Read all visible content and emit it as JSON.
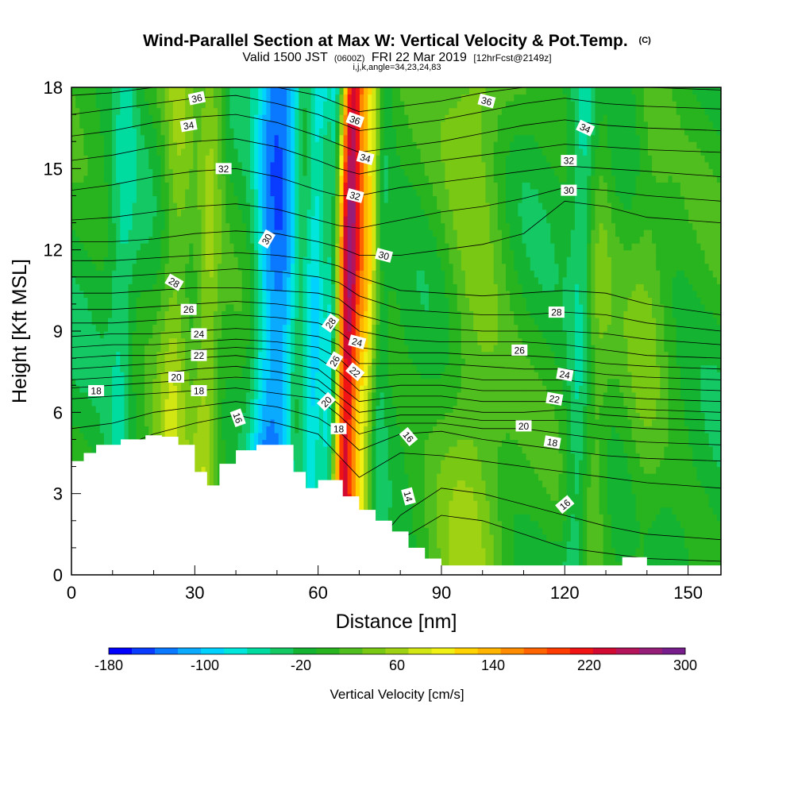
{
  "chart_data": {
    "type": "heatmap",
    "title": "Wind-Parallel Section at Max W: Vertical Velocity & Pot.Temp.",
    "title_tag": "(C)",
    "subtitle_prefix": "Valid 1500 JST",
    "subtitle_utc": "(0600Z)",
    "subtitle_date": "FRI 22 Mar 2019",
    "subtitle_fcst": "[12hrFcst@2149z]",
    "subtitle2": "i,j,k,angle=34,23,24,83",
    "xlabel": "Distance [nm]",
    "ylabel": "Height [Kft MSL]",
    "xlim": [
      0,
      158
    ],
    "ylim": [
      0,
      18
    ],
    "xticks": [
      0,
      30,
      60,
      90,
      120,
      150
    ],
    "yticks": [
      0,
      3,
      6,
      9,
      12,
      15,
      18
    ],
    "colorbar": {
      "title": "Vertical Velocity [cm/s]",
      "min": -180,
      "max": 300,
      "step": 20,
      "tick_labels": [
        "-180",
        "-100",
        "-20",
        "60",
        "140",
        "220",
        "300"
      ],
      "tick_values": [
        -180,
        -100,
        -20,
        60,
        140,
        220,
        300
      ],
      "colors": [
        "#0000ff",
        "#0a3cff",
        "#0a78ff",
        "#0aaaff",
        "#00d2ff",
        "#00e6dc",
        "#00dca0",
        "#14c864",
        "#14b432",
        "#28b41e",
        "#50be1e",
        "#78c814",
        "#a0d214",
        "#d2e614",
        "#f0f014",
        "#ffd200",
        "#ffb400",
        "#ff8c00",
        "#ff6400",
        "#ff3c00",
        "#f01414",
        "#d20a32",
        "#b4145a",
        "#961e78",
        "#781e8c"
      ]
    },
    "terrain": {
      "x": [
        0,
        3,
        6,
        12,
        18,
        22,
        26,
        30,
        33,
        36,
        40,
        45,
        50,
        54,
        57,
        60,
        62,
        66,
        70,
        74,
        78,
        82,
        86,
        90,
        130,
        134,
        136,
        140,
        158
      ],
      "y": [
        4.2,
        4.5,
        4.8,
        5.0,
        5.15,
        5.1,
        4.8,
        3.8,
        3.3,
        4.1,
        4.6,
        4.8,
        4.8,
        3.8,
        3.2,
        3.5,
        3.5,
        2.9,
        2.4,
        2.0,
        1.6,
        1.0,
        0.6,
        0.35,
        0.35,
        0.65,
        0.65,
        0.35,
        0.35
      ]
    },
    "velocity_features": [
      {
        "x": 48,
        "w": 4,
        "value": -110
      },
      {
        "x": 52,
        "w": 3,
        "value": -70
      },
      {
        "x": 59,
        "w": 2.5,
        "value": -80
      },
      {
        "x": 63,
        "w": 1.5,
        "value": -60
      },
      {
        "x": 67,
        "w": 2.5,
        "value": 230
      },
      {
        "x": 71,
        "w": 3.5,
        "value": 120
      },
      {
        "x": 75,
        "w": 2,
        "value": -40
      },
      {
        "x": 33,
        "w": 3,
        "value": 60
      },
      {
        "x": 98,
        "w": 8,
        "value": 50
      },
      {
        "x": 124,
        "w": 3,
        "value": -60
      },
      {
        "x": 127,
        "w": 4,
        "value": 40
      },
      {
        "x": 140,
        "w": 5,
        "value": 30
      },
      {
        "x": 12,
        "w": 3,
        "value": -40
      },
      {
        "x": 25,
        "w": 4,
        "value": 60
      }
    ],
    "theta_levels": [
      14,
      15,
      16,
      17,
      18,
      19,
      20,
      21,
      22,
      23,
      24,
      25,
      26,
      27,
      28,
      29,
      30,
      31,
      32,
      33,
      34,
      35,
      36
    ],
    "theta_profiles": {
      "x": [
        0,
        10,
        20,
        30,
        40,
        50,
        60,
        65,
        70,
        80,
        90,
        100,
        110,
        120,
        130,
        140,
        158
      ],
      "heights_per_level": [
        [
          0.2,
          0.2,
          0.2,
          0.2,
          0.2,
          0.2,
          0.2,
          0.2,
          0.2,
          1.3,
          2.2,
          2.0,
          1.5,
          1.0,
          0.8,
          0.6,
          0.5
        ],
        [
          0.4,
          0.4,
          0.4,
          0.4,
          0.4,
          0.4,
          0.4,
          0.4,
          0.4,
          2.2,
          3.2,
          3.0,
          2.6,
          2.2,
          1.8,
          1.5,
          1.3
        ],
        [
          4.0,
          4.6,
          5.2,
          5.6,
          5.9,
          5.6,
          5.2,
          4.4,
          3.6,
          4.5,
          4.4,
          4.2,
          4.0,
          3.8,
          3.6,
          3.4,
          3.2
        ],
        [
          5.4,
          5.6,
          6.0,
          6.2,
          6.4,
          6.2,
          5.8,
          5.3,
          4.6,
          5.2,
          5.3,
          5.0,
          4.8,
          4.6,
          4.4,
          4.3,
          4.2
        ],
        [
          6.5,
          6.6,
          6.7,
          6.8,
          6.9,
          6.7,
          6.5,
          5.9,
          5.2,
          5.6,
          5.6,
          5.4,
          5.4,
          5.2,
          5.0,
          4.9,
          4.8
        ],
        [
          6.9,
          7.0,
          7.1,
          7.2,
          7.3,
          7.2,
          6.9,
          6.3,
          5.6,
          5.9,
          5.9,
          5.7,
          5.7,
          5.7,
          5.5,
          5.4,
          5.3
        ],
        [
          7.2,
          7.3,
          7.4,
          7.6,
          7.7,
          7.5,
          7.2,
          6.6,
          6.0,
          6.2,
          6.2,
          6.0,
          6.0,
          6.1,
          5.9,
          5.8,
          5.7
        ],
        [
          7.6,
          7.7,
          7.8,
          8.0,
          8.1,
          7.9,
          7.6,
          7.0,
          6.4,
          6.6,
          6.6,
          6.4,
          6.4,
          6.4,
          6.2,
          6.1,
          6.0
        ],
        [
          8.0,
          8.1,
          8.1,
          8.3,
          8.4,
          8.3,
          8.0,
          7.5,
          6.8,
          7.0,
          7.0,
          6.8,
          6.8,
          6.8,
          6.6,
          6.5,
          6.4
        ],
        [
          8.4,
          8.5,
          8.5,
          8.6,
          8.7,
          8.6,
          8.4,
          8.0,
          7.3,
          7.4,
          7.4,
          7.2,
          7.2,
          7.2,
          7.0,
          6.9,
          6.8
        ],
        [
          8.8,
          8.9,
          8.9,
          9.0,
          9.1,
          9.0,
          8.8,
          8.5,
          7.8,
          7.8,
          7.8,
          7.7,
          7.6,
          7.6,
          7.4,
          7.3,
          7.2
        ],
        [
          9.3,
          9.3,
          9.4,
          9.5,
          9.6,
          9.5,
          9.3,
          9.0,
          8.4,
          8.2,
          8.2,
          8.1,
          8.1,
          8.0,
          7.8,
          7.7,
          7.6
        ],
        [
          9.8,
          9.8,
          9.9,
          10.0,
          10.1,
          10.0,
          9.8,
          9.6,
          9.0,
          8.7,
          8.6,
          8.6,
          8.6,
          8.5,
          8.3,
          8.1,
          8.0
        ],
        [
          10.4,
          10.4,
          10.5,
          10.6,
          10.6,
          10.5,
          10.4,
          10.2,
          9.6,
          9.2,
          9.1,
          9.0,
          9.0,
          9.0,
          8.9,
          8.7,
          8.5
        ],
        [
          11.0,
          11.0,
          11.1,
          11.2,
          11.3,
          11.2,
          11.0,
          10.8,
          10.3,
          9.8,
          9.7,
          9.6,
          9.6,
          9.7,
          9.6,
          9.3,
          9.0
        ],
        [
          11.6,
          11.6,
          11.7,
          11.8,
          11.9,
          11.8,
          11.6,
          11.4,
          11.0,
          10.5,
          10.4,
          10.3,
          10.4,
          10.5,
          10.4,
          10.0,
          9.6
        ],
        [
          12.3,
          12.3,
          12.4,
          12.6,
          12.7,
          12.6,
          12.3,
          12.1,
          11.8,
          11.8,
          12.0,
          12.2,
          12.6,
          13.8,
          13.6,
          13.2,
          13.0
        ],
        [
          13.1,
          13.2,
          13.4,
          13.6,
          13.7,
          13.5,
          13.1,
          12.9,
          12.8,
          13.1,
          13.4,
          13.6,
          13.9,
          14.3,
          14.2,
          14.0,
          13.8
        ],
        [
          14.2,
          14.4,
          14.7,
          14.9,
          15.0,
          14.7,
          14.2,
          14.0,
          14.0,
          14.3,
          14.5,
          14.7,
          14.9,
          15.1,
          15.0,
          14.9,
          14.7
        ],
        [
          15.3,
          15.5,
          15.8,
          16.0,
          16.1,
          15.8,
          15.3,
          15.0,
          14.8,
          15.1,
          15.3,
          15.5,
          15.7,
          15.9,
          15.8,
          15.7,
          15.6
        ],
        [
          16.2,
          16.4,
          16.7,
          16.9,
          17.0,
          16.7,
          16.2,
          15.9,
          15.6,
          15.8,
          16.0,
          16.3,
          16.6,
          16.8,
          16.6,
          16.5,
          16.4
        ],
        [
          17.0,
          17.2,
          17.4,
          17.6,
          17.7,
          17.4,
          17.0,
          16.7,
          16.4,
          16.6,
          16.8,
          17.1,
          17.4,
          17.6,
          17.4,
          17.3,
          17.2
        ],
        [
          17.7,
          17.8,
          18.0,
          18.1,
          18.2,
          18.0,
          17.7,
          17.4,
          17.1,
          17.3,
          17.5,
          17.8,
          18.0,
          18.2,
          18.1,
          18.0,
          17.9
        ]
      ]
    },
    "contour_labels": [
      {
        "text": "36",
        "x": 30.5,
        "y": 17.6,
        "angle": 12
      },
      {
        "text": "34",
        "x": 28.5,
        "y": 16.6,
        "angle": 10
      },
      {
        "text": "32",
        "x": 37,
        "y": 15.0,
        "angle": 0
      },
      {
        "text": "30",
        "x": 47.5,
        "y": 12.4,
        "angle": 60
      },
      {
        "text": "28",
        "x": 25,
        "y": 10.8,
        "angle": -30
      },
      {
        "text": "26",
        "x": 28.5,
        "y": 9.8,
        "angle": 0
      },
      {
        "text": "24",
        "x": 31,
        "y": 8.9,
        "angle": 0
      },
      {
        "text": "22",
        "x": 31,
        "y": 8.1,
        "angle": 0
      },
      {
        "text": "20",
        "x": 25.5,
        "y": 7.3,
        "angle": 0
      },
      {
        "text": "18",
        "x": 6,
        "y": 6.8,
        "angle": 0
      },
      {
        "text": "18",
        "x": 31,
        "y": 6.8,
        "angle": 0
      },
      {
        "text": "16",
        "x": 40.5,
        "y": 5.8,
        "angle": -70
      },
      {
        "text": "36",
        "x": 69,
        "y": 16.8,
        "angle": -20
      },
      {
        "text": "34",
        "x": 71.5,
        "y": 15.4,
        "angle": -15
      },
      {
        "text": "32",
        "x": 69,
        "y": 14.0,
        "angle": -15
      },
      {
        "text": "30",
        "x": 76,
        "y": 11.8,
        "angle": -15
      },
      {
        "text": "28",
        "x": 63,
        "y": 9.3,
        "angle": 55
      },
      {
        "text": "24",
        "x": 69.5,
        "y": 8.6,
        "angle": -15
      },
      {
        "text": "26",
        "x": 64,
        "y": 7.9,
        "angle": 60
      },
      {
        "text": "22",
        "x": 69,
        "y": 7.5,
        "angle": -40
      },
      {
        "text": "20",
        "x": 62,
        "y": 6.4,
        "angle": 45
      },
      {
        "text": "18",
        "x": 65,
        "y": 5.4,
        "angle": 0
      },
      {
        "text": "16",
        "x": 82,
        "y": 5.1,
        "angle": -50
      },
      {
        "text": "14",
        "x": 82,
        "y": 2.9,
        "angle": -75
      },
      {
        "text": "36",
        "x": 101,
        "y": 17.5,
        "angle": -15
      },
      {
        "text": "34",
        "x": 125,
        "y": 16.5,
        "angle": -25
      },
      {
        "text": "32",
        "x": 121,
        "y": 15.3,
        "angle": 0
      },
      {
        "text": "30",
        "x": 121,
        "y": 14.2,
        "angle": 0
      },
      {
        "text": "28",
        "x": 118,
        "y": 9.7,
        "angle": 0
      },
      {
        "text": "26",
        "x": 109,
        "y": 8.3,
        "angle": 0
      },
      {
        "text": "24",
        "x": 120,
        "y": 7.4,
        "angle": -10
      },
      {
        "text": "22",
        "x": 117.5,
        "y": 6.5,
        "angle": -10
      },
      {
        "text": "20",
        "x": 110,
        "y": 5.5,
        "angle": 0
      },
      {
        "text": "18",
        "x": 117,
        "y": 4.9,
        "angle": -10
      },
      {
        "text": "16",
        "x": 120,
        "y": 2.6,
        "angle": 40
      }
    ]
  }
}
